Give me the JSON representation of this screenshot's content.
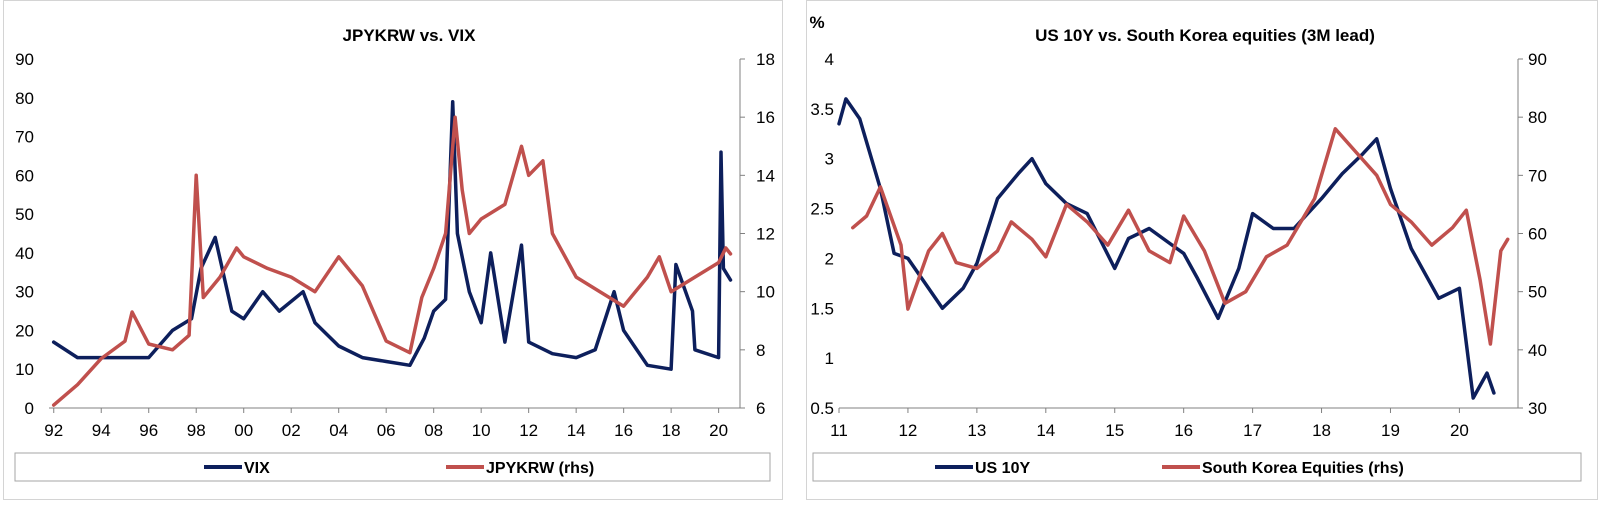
{
  "chart_data": [
    {
      "type": "line",
      "title": "JPYKRW vs. VIX",
      "x_ticks": [
        "92",
        "94",
        "96",
        "98",
        "00",
        "02",
        "04",
        "06",
        "08",
        "10",
        "12",
        "14",
        "16",
        "18",
        "20"
      ],
      "y_left": {
        "range": [
          0,
          90
        ],
        "ticks": [
          "0",
          "10",
          "20",
          "30",
          "40",
          "50",
          "60",
          "70",
          "80",
          "90"
        ]
      },
      "y_right": {
        "range": [
          6,
          18
        ],
        "ticks": [
          "6",
          "8",
          "10",
          "12",
          "14",
          "16",
          "18"
        ]
      },
      "series": [
        {
          "name": "VIX",
          "axis": "left",
          "color": "#0d1f5c",
          "x": [
            1992,
            1993,
            1994,
            1995,
            1996,
            1997,
            1997.8,
            1998.2,
            1998.8,
            1999.5,
            2000,
            2000.8,
            2001.5,
            2002.5,
            2003,
            2004,
            2005,
            2006,
            2007,
            2007.6,
            2008,
            2008.5,
            2008.8,
            2009,
            2009.5,
            2010,
            2010.4,
            2011,
            2011.7,
            2012,
            2013,
            2014,
            2014.8,
            2015.6,
            2016,
            2017,
            2018,
            2018.2,
            2018.9,
            2019,
            2020,
            2020.1,
            2020.2,
            2020.5
          ],
          "values": [
            17,
            13,
            13,
            13,
            13,
            20,
            23,
            36,
            44,
            25,
            23,
            30,
            25,
            30,
            22,
            16,
            13,
            12,
            11,
            18,
            25,
            28,
            79,
            45,
            30,
            22,
            40,
            17,
            42,
            17,
            14,
            13,
            15,
            30,
            20,
            11,
            10,
            37,
            25,
            15,
            13,
            66,
            36,
            33
          ]
        },
        {
          "name": "JPYKRW (rhs)",
          "axis": "right",
          "color": "#c0504d",
          "x": [
            1992,
            1993,
            1994,
            1995,
            1995.3,
            1996,
            1997,
            1997.7,
            1998,
            1998.3,
            1999,
            1999.7,
            2000,
            2001,
            2002,
            2003,
            2004,
            2005,
            2006,
            2007,
            2007.5,
            2008,
            2008.5,
            2008.9,
            2009.2,
            2009.5,
            2010,
            2011,
            2011.7,
            2012,
            2012.6,
            2013,
            2014,
            2015,
            2016,
            2017,
            2017.5,
            2018,
            2019,
            2020,
            2020.3,
            2020.5
          ],
          "values": [
            6.1,
            6.8,
            7.7,
            8.3,
            9.3,
            8.2,
            8.0,
            8.5,
            14.0,
            9.8,
            10.5,
            11.5,
            11.2,
            10.8,
            10.5,
            10.0,
            11.2,
            10.2,
            8.3,
            7.9,
            9.8,
            10.8,
            12.0,
            16.0,
            13.5,
            12.0,
            12.5,
            13.0,
            15.0,
            14.0,
            14.5,
            12.0,
            10.5,
            10.0,
            9.5,
            10.5,
            11.2,
            10.0,
            10.5,
            11.0,
            11.5,
            11.3
          ]
        }
      ]
    },
    {
      "type": "line",
      "title": "US 10Y vs. South Korea equities (3M lead)",
      "y_unit_label": "%",
      "x_ticks": [
        "11",
        "12",
        "13",
        "14",
        "15",
        "16",
        "17",
        "18",
        "19",
        "20"
      ],
      "y_left": {
        "range": [
          0.5,
          4
        ],
        "ticks": [
          "0.5",
          "1",
          "1.5",
          "2",
          "2.5",
          "3",
          "3.5",
          "4"
        ]
      },
      "y_right": {
        "range": [
          30,
          90
        ],
        "ticks": [
          "30",
          "40",
          "50",
          "60",
          "70",
          "80",
          "90"
        ]
      },
      "series": [
        {
          "name": "US 10Y",
          "axis": "left",
          "color": "#0d1f5c",
          "x": [
            2011,
            2011.1,
            2011.3,
            2011.6,
            2011.8,
            2012,
            2012.3,
            2012.5,
            2012.8,
            2013,
            2013.3,
            2013.6,
            2013.8,
            2014,
            2014.3,
            2014.6,
            2015,
            2015.2,
            2015.5,
            2015.8,
            2016,
            2016.2,
            2016.5,
            2016.8,
            2017,
            2017.3,
            2017.6,
            2018,
            2018.3,
            2018.6,
            2018.8,
            2019,
            2019.3,
            2019.7,
            2020,
            2020.2,
            2020.4,
            2020.5
          ],
          "values": [
            3.35,
            3.6,
            3.4,
            2.7,
            2.05,
            2.0,
            1.7,
            1.5,
            1.7,
            1.95,
            2.6,
            2.85,
            3.0,
            2.75,
            2.55,
            2.45,
            1.9,
            2.2,
            2.3,
            2.15,
            2.05,
            1.8,
            1.4,
            1.9,
            2.45,
            2.3,
            2.3,
            2.6,
            2.85,
            3.05,
            3.2,
            2.7,
            2.1,
            1.6,
            1.7,
            0.6,
            0.85,
            0.65
          ]
        },
        {
          "name": "South Korea Equities (rhs)",
          "axis": "right",
          "color": "#c0504d",
          "x": [
            2011.2,
            2011.4,
            2011.6,
            2011.9,
            2012,
            2012.3,
            2012.5,
            2012.7,
            2013,
            2013.3,
            2013.5,
            2013.8,
            2014,
            2014.3,
            2014.6,
            2014.9,
            2015.2,
            2015.5,
            2015.8,
            2016,
            2016.3,
            2016.6,
            2016.9,
            2017.2,
            2017.5,
            2017.9,
            2018.2,
            2018.5,
            2018.8,
            2019,
            2019.3,
            2019.6,
            2019.9,
            2020.1,
            2020.3,
            2020.45,
            2020.6,
            2020.7
          ],
          "values": [
            61,
            63,
            68,
            58,
            47,
            57,
            60,
            55,
            54,
            57,
            62,
            59,
            56,
            65,
            62,
            58,
            64,
            57,
            55,
            63,
            57,
            48,
            50,
            56,
            58,
            66,
            78,
            74,
            70,
            65,
            62,
            58,
            61,
            64,
            52,
            41,
            57,
            59
          ]
        }
      ]
    }
  ]
}
